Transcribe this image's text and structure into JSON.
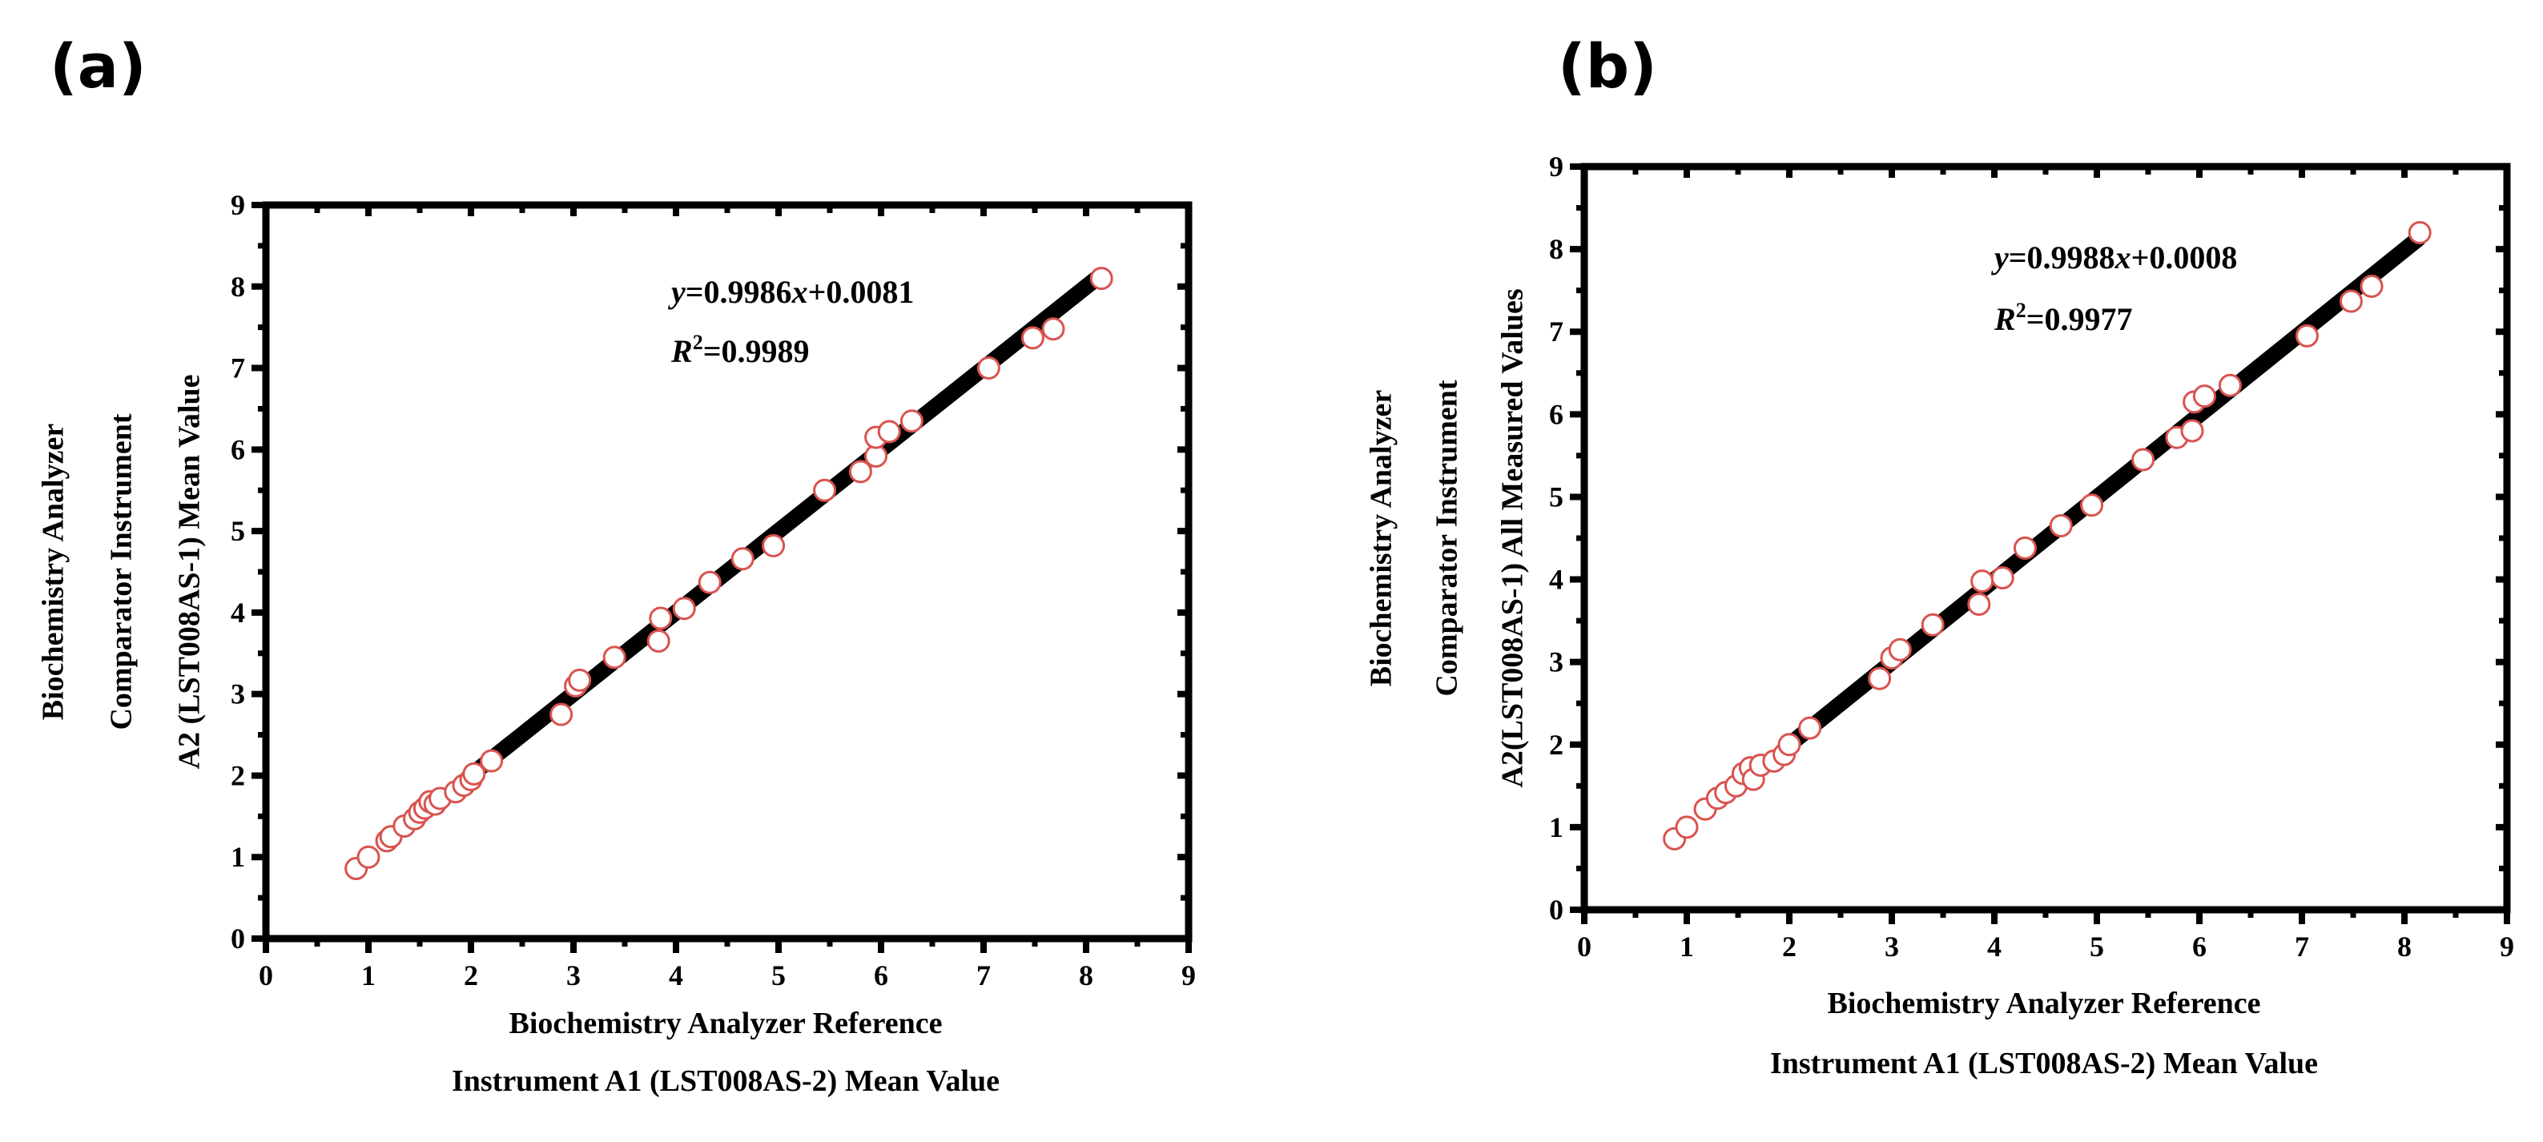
{
  "panels": [
    {
      "label": "(a)"
    },
    {
      "label": "(b)"
    }
  ],
  "chart_data": [
    {
      "type": "scatter",
      "panel": "(a)",
      "xlabel": [
        "Biochemistry Analyzer Reference",
        "Instrument A1 (LST008AS-2) Mean Value"
      ],
      "ylabel": [
        "Biochemistry Analyzer",
        "Comparator Instrument",
        "A2 (LST008AS-1) Mean Value"
      ],
      "xlim": [
        0,
        9
      ],
      "ylim": [
        0,
        9
      ],
      "xticks": [
        "0",
        "1",
        "2",
        "3",
        "4",
        "5",
        "6",
        "7",
        "8",
        "9"
      ],
      "yticks": [
        "0",
        "1",
        "2",
        "3",
        "4",
        "5",
        "6",
        "7",
        "8",
        "9"
      ],
      "equation": {
        "y": "y",
        "rest": "=0.9986",
        "x": "x",
        "tail": "+0.0081"
      },
      "r2": {
        "R": "R",
        "sup": "2",
        "rest": "=0.9989"
      },
      "fit": {
        "slope": 0.9986,
        "intercept": 0.0081,
        "x_range": [
          2.0,
          8.15
        ]
      },
      "colors": {
        "marker": "#d9534f",
        "fit": "#000000"
      },
      "points": [
        [
          0.88,
          0.86
        ],
        [
          1.0,
          1.0
        ],
        [
          1.18,
          1.2
        ],
        [
          1.22,
          1.25
        ],
        [
          1.35,
          1.38
        ],
        [
          1.45,
          1.47
        ],
        [
          1.5,
          1.55
        ],
        [
          1.55,
          1.6
        ],
        [
          1.6,
          1.68
        ],
        [
          1.65,
          1.65
        ],
        [
          1.7,
          1.72
        ],
        [
          1.85,
          1.8
        ],
        [
          1.93,
          1.88
        ],
        [
          2.0,
          1.95
        ],
        [
          2.03,
          2.02
        ],
        [
          2.2,
          2.18
        ],
        [
          2.88,
          2.75
        ],
        [
          3.02,
          3.1
        ],
        [
          3.06,
          3.17
        ],
        [
          3.4,
          3.45
        ],
        [
          3.83,
          3.65
        ],
        [
          3.85,
          3.93
        ],
        [
          4.08,
          4.05
        ],
        [
          4.33,
          4.37
        ],
        [
          4.65,
          4.66
        ],
        [
          4.95,
          4.82
        ],
        [
          5.45,
          5.5
        ],
        [
          5.8,
          5.73
        ],
        [
          5.95,
          5.92
        ],
        [
          5.95,
          6.15
        ],
        [
          6.08,
          6.22
        ],
        [
          6.3,
          6.35
        ],
        [
          7.05,
          7.0
        ],
        [
          7.48,
          7.37
        ],
        [
          7.68,
          7.48
        ],
        [
          8.15,
          8.1
        ]
      ]
    },
    {
      "type": "scatter",
      "panel": "(b)",
      "xlabel": [
        "Biochemistry Analyzer Reference",
        "Instrument A1 (LST008AS-2) Mean Value"
      ],
      "ylabel": [
        "Biochemistry Analyzer",
        "Comparator Instrument",
        "A2(LST008AS-1) All Measured Values"
      ],
      "xlim": [
        0,
        9
      ],
      "ylim": [
        0,
        9
      ],
      "xticks": [
        "0",
        "1",
        "2",
        "3",
        "4",
        "5",
        "6",
        "7",
        "8",
        "9"
      ],
      "yticks": [
        "0",
        "1",
        "2",
        "3",
        "4",
        "5",
        "6",
        "7",
        "8",
        "9"
      ],
      "equation": {
        "y": "y",
        "rest": "=0.9988",
        "x": "x",
        "tail": "+0.0008"
      },
      "r2": {
        "R": "R",
        "sup": "2",
        "rest": "=0.9977"
      },
      "fit": {
        "slope": 0.9988,
        "intercept": 0.0008,
        "x_range": [
          2.0,
          8.15
        ]
      },
      "colors": {
        "marker": "#d9534f",
        "fit": "#000000"
      },
      "points": [
        [
          0.88,
          0.86
        ],
        [
          1.0,
          1.0
        ],
        [
          1.18,
          1.22
        ],
        [
          1.3,
          1.35
        ],
        [
          1.38,
          1.42
        ],
        [
          1.48,
          1.5
        ],
        [
          1.55,
          1.65
        ],
        [
          1.62,
          1.72
        ],
        [
          1.65,
          1.58
        ],
        [
          1.72,
          1.75
        ],
        [
          1.85,
          1.8
        ],
        [
          1.95,
          1.88
        ],
        [
          2.0,
          2.0
        ],
        [
          2.2,
          2.2
        ],
        [
          2.88,
          2.8
        ],
        [
          3.0,
          3.05
        ],
        [
          3.08,
          3.15
        ],
        [
          3.4,
          3.45
        ],
        [
          3.85,
          3.7
        ],
        [
          3.88,
          3.98
        ],
        [
          4.08,
          4.02
        ],
        [
          4.3,
          4.38
        ],
        [
          4.65,
          4.65
        ],
        [
          4.95,
          4.9
        ],
        [
          5.45,
          5.45
        ],
        [
          5.78,
          5.72
        ],
        [
          5.93,
          5.8
        ],
        [
          5.95,
          6.15
        ],
        [
          6.05,
          6.22
        ],
        [
          6.3,
          6.35
        ],
        [
          7.05,
          6.95
        ],
        [
          7.48,
          7.37
        ],
        [
          7.68,
          7.55
        ],
        [
          8.15,
          8.2
        ]
      ]
    }
  ]
}
